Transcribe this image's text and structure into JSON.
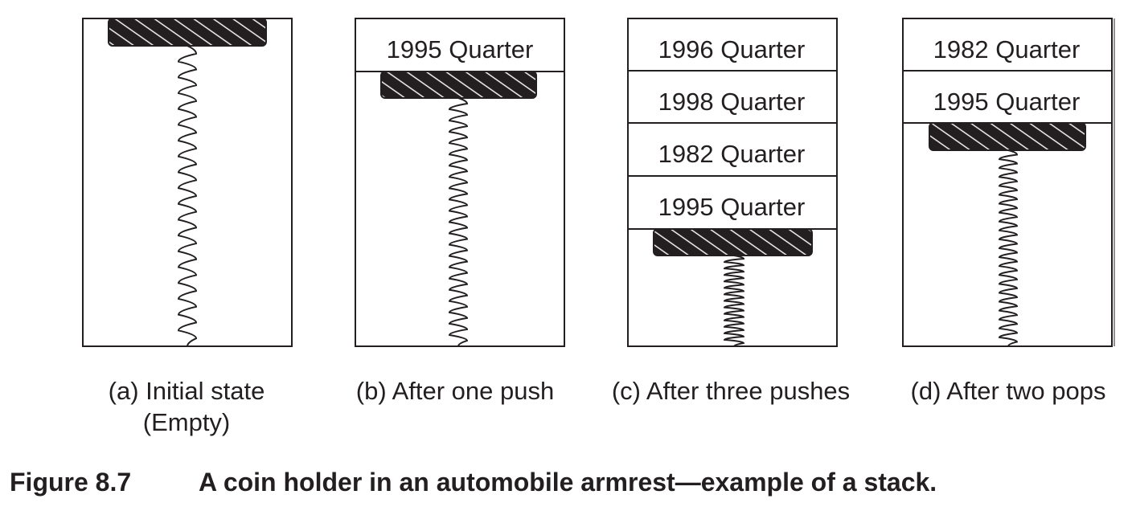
{
  "figure": {
    "number": "Figure 8.7",
    "title": "A coin holder in an automobile armrest—example of a stack."
  },
  "panels": [
    {
      "id": "a",
      "caption_lines": [
        "(a) Initial state",
        "(Empty)"
      ],
      "coins": []
    },
    {
      "id": "b",
      "caption_lines": [
        "(b) After one push"
      ],
      "coins": [
        "1995 Quarter"
      ]
    },
    {
      "id": "c",
      "caption_lines": [
        "(c) After three pushes"
      ],
      "coins": [
        "1996 Quarter",
        "1998 Quarter",
        "1982 Quarter",
        "1995 Quarter"
      ]
    },
    {
      "id": "d",
      "caption_lines": [
        "(d) After two pops"
      ],
      "coins": [
        "1982 Quarter",
        "1995 Quarter"
      ]
    }
  ],
  "colors": {
    "ink": "#231f20",
    "platform": "#231f20",
    "background": "#ffffff"
  }
}
